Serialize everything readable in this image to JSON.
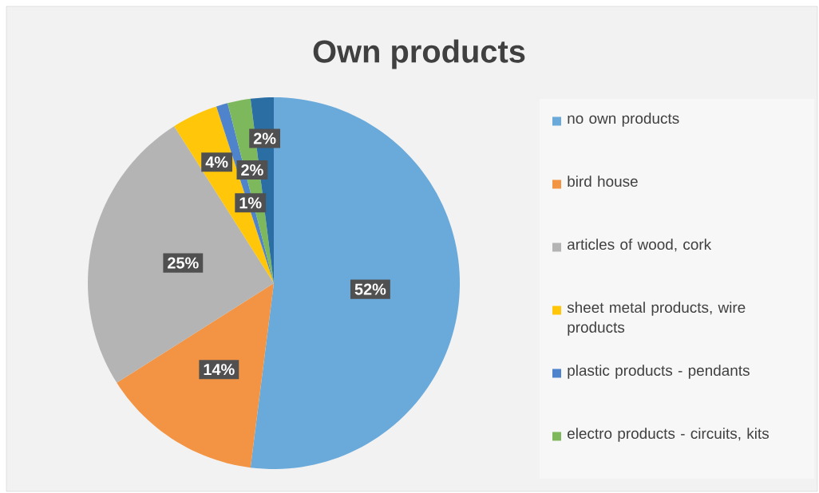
{
  "chart_data": {
    "type": "pie",
    "title": "Own products",
    "categories": [
      "no own products",
      "bird house",
      "articles of wood, cork",
      "sheet metal products, wire products",
      "plastic products - pendants",
      "electro products - circuits, kits",
      null
    ],
    "values": [
      52,
      14,
      25,
      4,
      1,
      2,
      2
    ],
    "colors": [
      "#6aaadb",
      "#f29443",
      "#b4b4b4",
      "#ffc60a",
      "#4f83cc",
      "#7eb85d",
      "#2a6ea3"
    ],
    "value_labels": [
      "52%",
      "14%",
      "25%",
      "4%",
      "1%",
      "2%",
      "2%"
    ],
    "legend": "right"
  }
}
